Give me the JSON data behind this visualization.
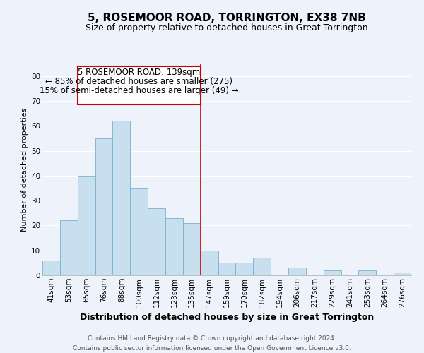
{
  "title": "5, ROSEMOOR ROAD, TORRINGTON, EX38 7NB",
  "subtitle": "Size of property relative to detached houses in Great Torrington",
  "xlabel": "Distribution of detached houses by size in Great Torrington",
  "ylabel": "Number of detached properties",
  "footer_line1": "Contains HM Land Registry data © Crown copyright and database right 2024.",
  "footer_line2": "Contains public sector information licensed under the Open Government Licence v3.0.",
  "categories": [
    "41sqm",
    "53sqm",
    "65sqm",
    "76sqm",
    "88sqm",
    "100sqm",
    "112sqm",
    "123sqm",
    "135sqm",
    "147sqm",
    "159sqm",
    "170sqm",
    "182sqm",
    "194sqm",
    "206sqm",
    "217sqm",
    "229sqm",
    "241sqm",
    "253sqm",
    "264sqm",
    "276sqm"
  ],
  "values": [
    6,
    22,
    40,
    55,
    62,
    35,
    27,
    23,
    21,
    10,
    5,
    5,
    7,
    0,
    3,
    0,
    2,
    0,
    2,
    0,
    1
  ],
  "bar_color": "#c8dff0",
  "bar_edge_color": "#7ab0cc",
  "highlight_color": "#cc0000",
  "annotation_line1": "5 ROSEMOOR ROAD: 139sqm",
  "annotation_line2": "← 85% of detached houses are smaller (275)",
  "annotation_line3": "15% of semi-detached houses are larger (49) →",
  "annotation_box_color": "#cc0000",
  "ylim": [
    0,
    85
  ],
  "yticks": [
    0,
    10,
    20,
    30,
    40,
    50,
    60,
    70,
    80
  ],
  "background_color": "#eef2fa",
  "grid_color": "#ffffff",
  "title_fontsize": 11,
  "subtitle_fontsize": 9,
  "xlabel_fontsize": 9,
  "ylabel_fontsize": 8,
  "tick_fontsize": 7.5,
  "annotation_fontsize": 8.5,
  "footer_fontsize": 6.5
}
